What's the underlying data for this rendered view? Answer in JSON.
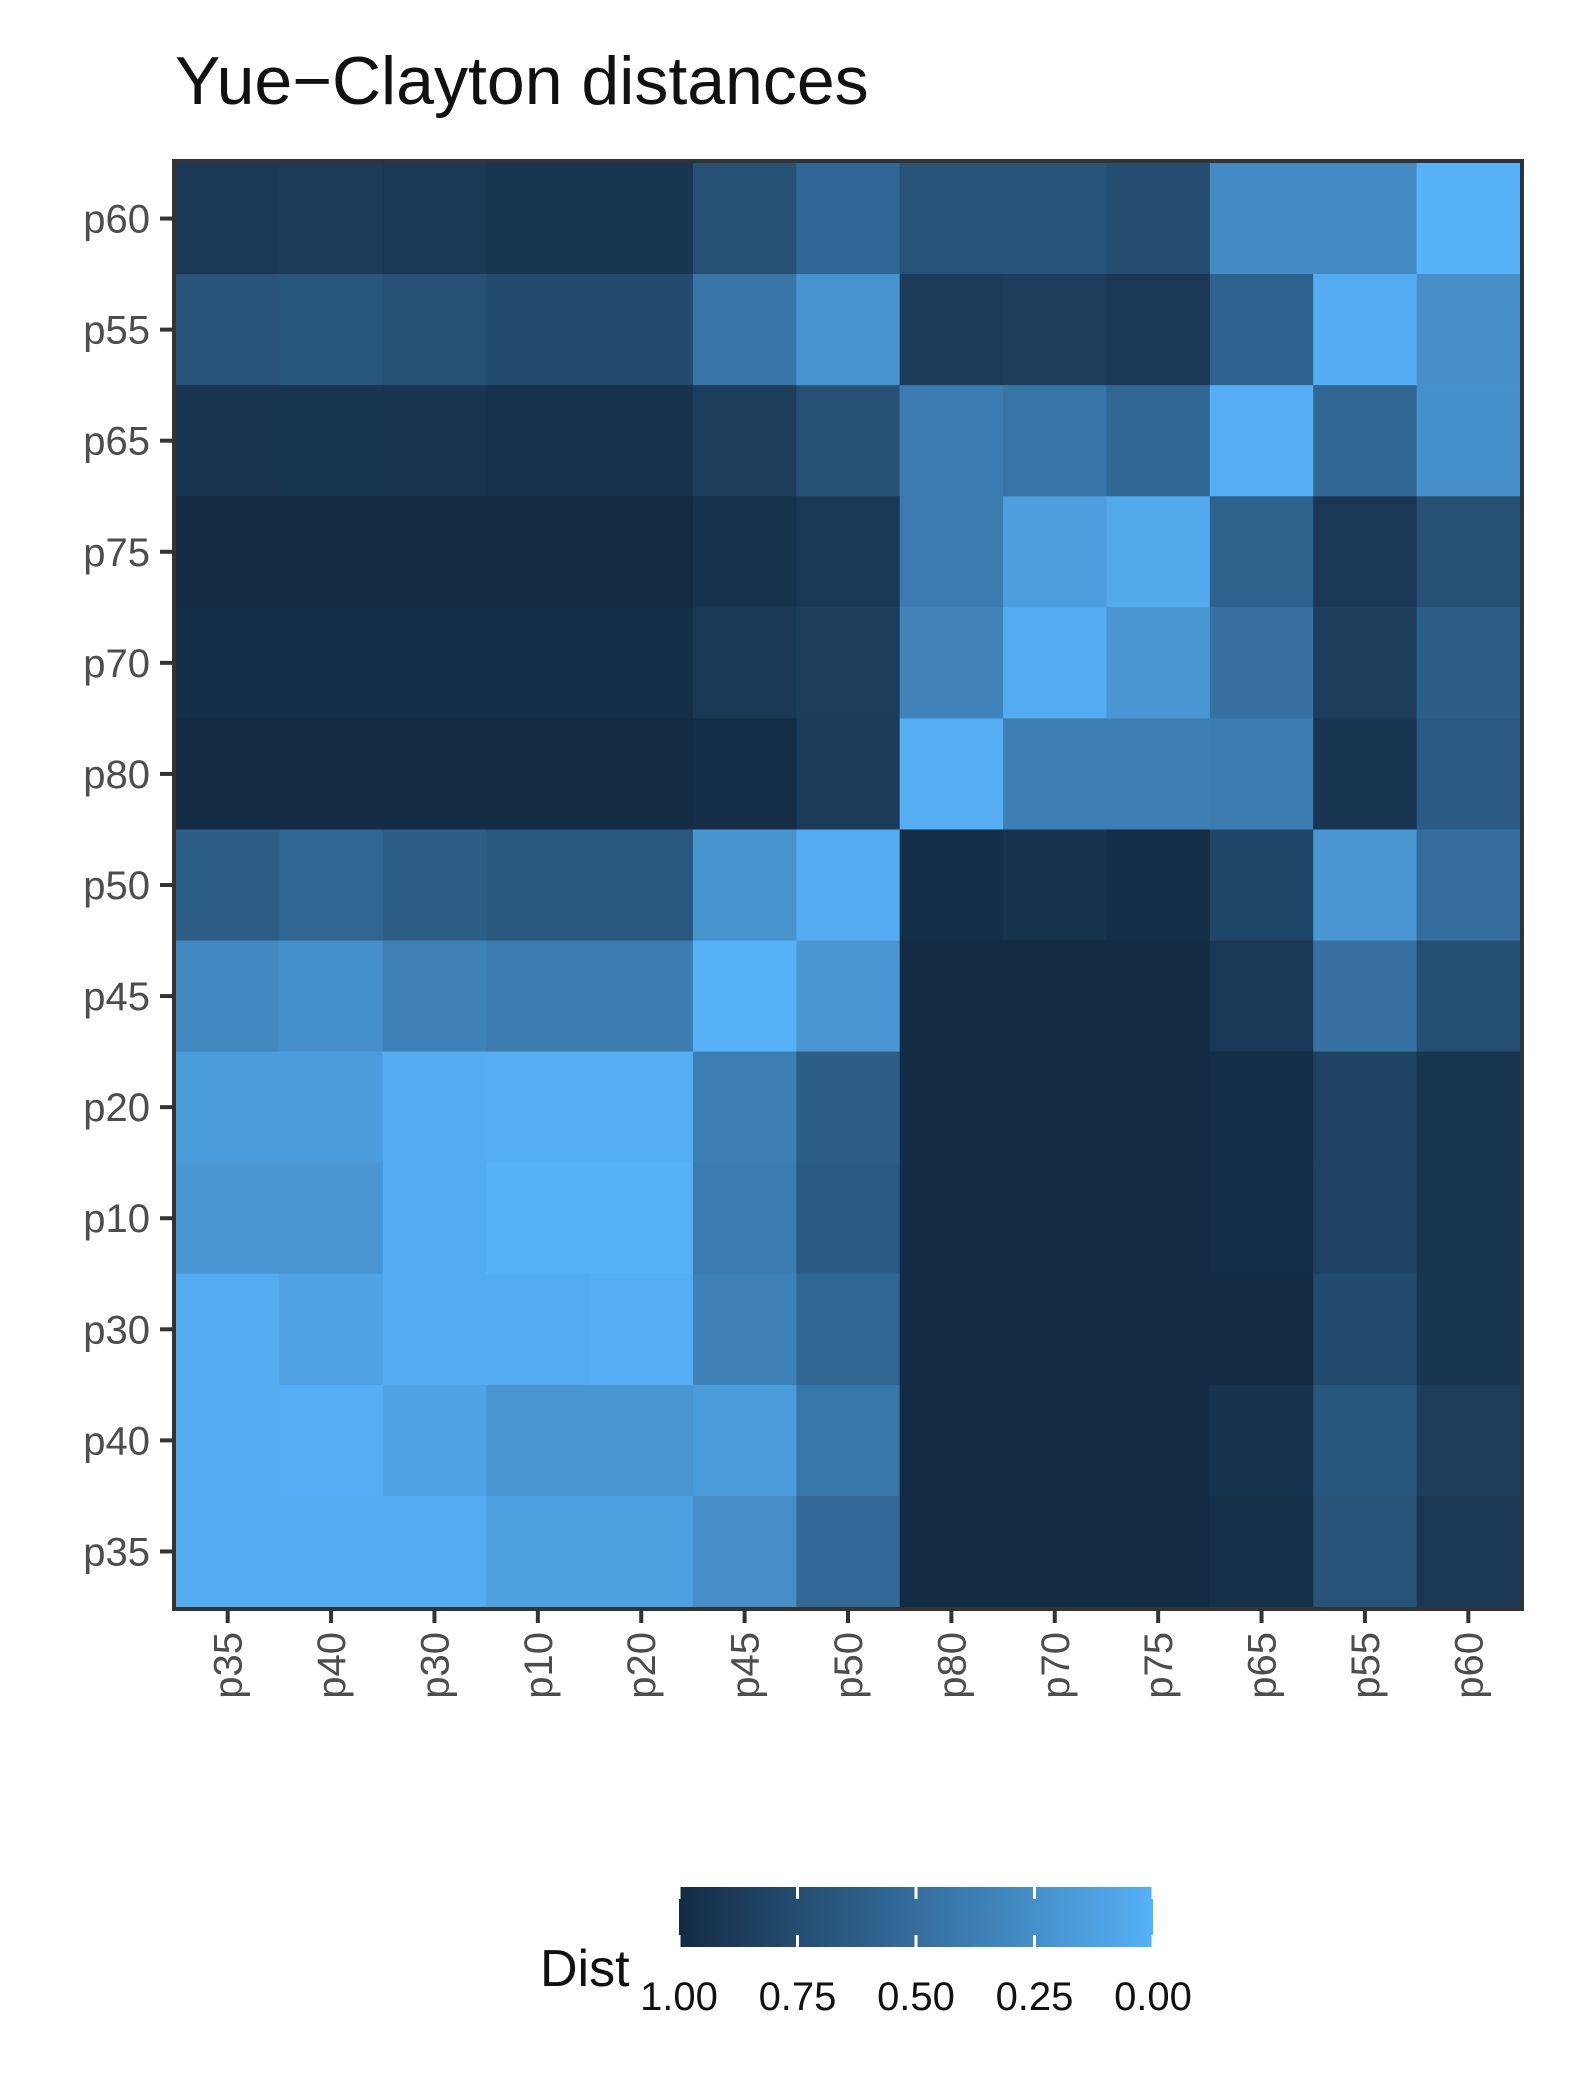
{
  "chart_data": {
    "type": "heatmap",
    "title": "Yue−Clayton distances",
    "xlabel": "",
    "ylabel": "",
    "x_categories": [
      "p35",
      "p40",
      "p30",
      "p10",
      "p20",
      "p45",
      "p50",
      "p80",
      "p70",
      "p75",
      "p65",
      "p55",
      "p60"
    ],
    "y_categories": [
      "p60",
      "p55",
      "p65",
      "p75",
      "p70",
      "p80",
      "p50",
      "p45",
      "p20",
      "p10",
      "p30",
      "p40",
      "p35"
    ],
    "values": [
      [
        0.9,
        0.88,
        0.9,
        0.92,
        0.92,
        0.72,
        0.55,
        0.7,
        0.7,
        0.75,
        0.28,
        0.28,
        0.0
      ],
      [
        0.7,
        0.68,
        0.72,
        0.76,
        0.76,
        0.45,
        0.22,
        0.88,
        0.86,
        0.9,
        0.58,
        0.03,
        0.26
      ],
      [
        0.93,
        0.92,
        0.93,
        0.94,
        0.94,
        0.86,
        0.72,
        0.4,
        0.45,
        0.56,
        0.02,
        0.56,
        0.24
      ],
      [
        1.0,
        1.0,
        1.0,
        1.0,
        1.0,
        0.95,
        0.9,
        0.4,
        0.14,
        0.06,
        0.6,
        0.9,
        0.72
      ],
      [
        0.98,
        0.98,
        0.98,
        0.98,
        0.98,
        0.9,
        0.86,
        0.34,
        0.04,
        0.2,
        0.48,
        0.86,
        0.62
      ],
      [
        1.0,
        1.0,
        1.0,
        1.0,
        1.0,
        0.98,
        0.88,
        0.02,
        0.38,
        0.38,
        0.4,
        0.92,
        0.64
      ],
      [
        0.62,
        0.56,
        0.62,
        0.66,
        0.66,
        0.22,
        0.04,
        0.98,
        0.94,
        0.98,
        0.8,
        0.2,
        0.5
      ],
      [
        0.3,
        0.25,
        0.36,
        0.4,
        0.4,
        0.0,
        0.2,
        1.0,
        1.0,
        1.0,
        0.9,
        0.48,
        0.74
      ],
      [
        0.16,
        0.16,
        0.04,
        0.02,
        0.02,
        0.38,
        0.62,
        1.0,
        1.0,
        1.0,
        0.98,
        0.82,
        0.92
      ],
      [
        0.2,
        0.2,
        0.04,
        0.0,
        0.0,
        0.4,
        0.64,
        1.0,
        1.0,
        1.0,
        0.98,
        0.82,
        0.92
      ],
      [
        0.04,
        0.11,
        0.04,
        0.04,
        0.02,
        0.36,
        0.56,
        1.0,
        1.0,
        1.0,
        1.0,
        0.76,
        0.92
      ],
      [
        0.04,
        0.02,
        0.1,
        0.2,
        0.2,
        0.16,
        0.44,
        1.0,
        1.0,
        1.0,
        0.94,
        0.68,
        0.86
      ],
      [
        0.04,
        0.04,
        0.04,
        0.12,
        0.12,
        0.26,
        0.54,
        1.0,
        1.0,
        1.0,
        0.96,
        0.7,
        0.9
      ]
    ],
    "color_scale": {
      "low_color": "#56b1f7",
      "high_color": "#132b43",
      "min": 0,
      "max": 1
    },
    "legend": {
      "title": "Dist",
      "position": "bottom",
      "labels": [
        "1.00",
        "0.75",
        "0.50",
        "0.25",
        "0.00"
      ],
      "breaks": [
        1.0,
        0.75,
        0.5,
        0.25,
        0.0
      ]
    },
    "grid": false
  }
}
